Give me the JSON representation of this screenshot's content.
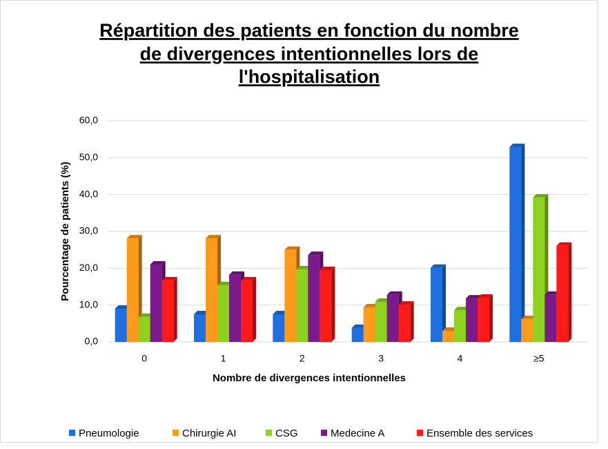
{
  "chart_data": {
    "type": "bar3d",
    "title": [
      "Répartition des patients en fonction du nombre",
      "de divergences intentionnelles lors de",
      "l'hospitalisation"
    ],
    "x_label": "Nombre de divergences intentionnelles",
    "y_label": "Pourcentage de patients (%)",
    "categories": [
      "0",
      "1",
      "2",
      "3",
      "4",
      "≥5"
    ],
    "series": [
      {
        "name": "Pneumologie",
        "color": "#1f6fe0",
        "values": [
          9.0,
          7.5,
          7.5,
          3.8,
          20.1,
          52.9
        ]
      },
      {
        "name": "Chirurgie AI",
        "color": "#ff9a1a",
        "values": [
          28.1,
          28.1,
          25.0,
          9.4,
          3.0,
          6.2
        ]
      },
      {
        "name": "CSG",
        "color": "#8fd11f",
        "values": [
          6.8,
          15.4,
          19.7,
          10.9,
          8.6,
          39.2
        ]
      },
      {
        "name": "Medecine A",
        "color": "#7b1a8a",
        "values": [
          21.0,
          18.2,
          23.6,
          12.8,
          11.8,
          12.8
        ]
      },
      {
        "name": "Ensemble des services",
        "color": "#ff1a1a",
        "values": [
          16.7,
          16.7,
          19.5,
          10.1,
          12.0,
          26.1
        ]
      }
    ],
    "ylim": [
      0,
      60
    ],
    "yticks": [
      {
        "value": 0,
        "label": "0,0"
      },
      {
        "value": 10,
        "label": "10,0"
      },
      {
        "value": 20,
        "label": "20,0"
      },
      {
        "value": 30,
        "label": "30,0"
      },
      {
        "value": 40,
        "label": "40,0"
      },
      {
        "value": 50,
        "label": "50,0"
      },
      {
        "value": 60,
        "label": "60,0"
      }
    ],
    "grid": true,
    "legend": "bottom"
  }
}
